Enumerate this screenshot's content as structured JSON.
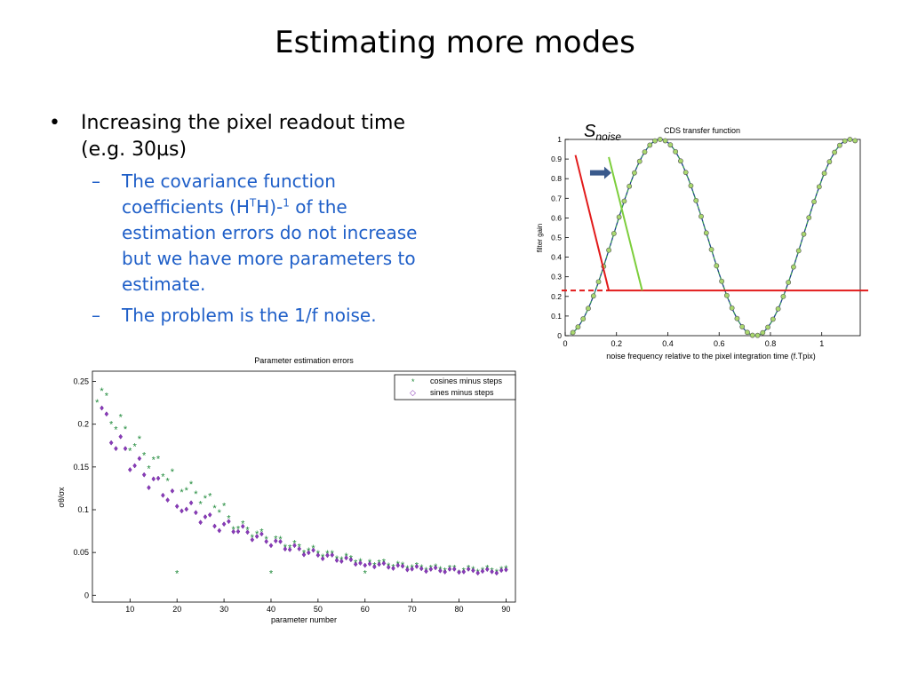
{
  "slide": {
    "title": "Estimating more modes",
    "bullet1": "Increasing the pixel readout time",
    "bullet1_line2": "(e.g. 30µs)",
    "sub1_a": "The covariance function",
    "sub1_b_pre": "coefficients (H",
    "sub1_b_sup": "T",
    "sub1_b_mid": "H)-",
    "sub1_b_sup2": "1",
    "sub1_b_post": " of the",
    "sub1_c": "estimation errors do not increase",
    "sub1_d": "but we have more parameters to",
    "sub1_e": "estimate.",
    "sub2": "The problem is the 1/f noise.",
    "bullet_mark": "•",
    "sub_mark": "–"
  },
  "annotation": {
    "s": "S",
    "sub": "noise"
  },
  "colors": {
    "title": "#000000",
    "subbullet": "#1f5fc8",
    "red": "#e21b1b",
    "green": "#7dce3c",
    "arrow": "#3a5a8c",
    "cos": "#1f8a3a",
    "sin": "#8a3ab9"
  },
  "chart_data": [
    {
      "type": "line",
      "title": "CDS transfer function",
      "xlabel": "noise frequency relative to the pixel integration time (f.Tpix)",
      "ylabel": "filter gain",
      "xlim": [
        0,
        1.15
      ],
      "ylim": [
        0,
        1
      ],
      "xticks": [
        "0",
        "0.2",
        "0.4",
        "0.6",
        "0.8",
        "1"
      ],
      "yticks": [
        "0",
        "0.1",
        "0.2",
        "0.3",
        "0.4",
        "0.5",
        "0.6",
        "0.7",
        "0.8",
        "0.9",
        "1"
      ],
      "series": [
        {
          "function": "sin^2(pi*f*1.35)",
          "x_step": 0.02,
          "x_start": 0.03,
          "x_end": 1.13
        }
      ],
      "overlays": {
        "red_line_y": 0.23,
        "red_diag": [
          [
            0.04,
            0.92
          ],
          [
            0.17,
            0.23
          ]
        ],
        "green_diag": [
          [
            0.17,
            0.91
          ],
          [
            0.3,
            0.23
          ]
        ],
        "arrow_at": [
          0.18,
          0.83
        ]
      },
      "grid": false
    },
    {
      "type": "scatter",
      "title": "Parameter estimation errors",
      "xlabel": "parameter number",
      "ylabel": "σθ/σx",
      "xlim": [
        2,
        92
      ],
      "ylim": [
        -0.008,
        0.262
      ],
      "xticks": [
        "10",
        "20",
        "30",
        "40",
        "50",
        "60",
        "70",
        "80",
        "90"
      ],
      "yticks": [
        "0",
        "0.05",
        "0.1",
        "0.15",
        "0.2",
        "0.25"
      ],
      "legend": [
        "cosines minus steps",
        "sines minus steps"
      ],
      "legend_position": "top-right",
      "series": [
        {
          "name": "cosines minus steps",
          "x_start": 3,
          "x_end": 90,
          "y_first": 0.25,
          "y_last": 0.029,
          "outliers": [
            [
              20,
              0.025
            ],
            [
              40,
              0.025
            ],
            [
              60,
              0.025
            ],
            [
              80,
              0.026
            ]
          ]
        },
        {
          "name": "sines minus steps",
          "x_start": 4,
          "x_end": 90,
          "y_first": 0.235,
          "y_last": 0.028,
          "outliers": [
            [
              20,
              0.104
            ],
            [
              60,
              0.035
            ]
          ]
        }
      ],
      "grid": false
    }
  ]
}
